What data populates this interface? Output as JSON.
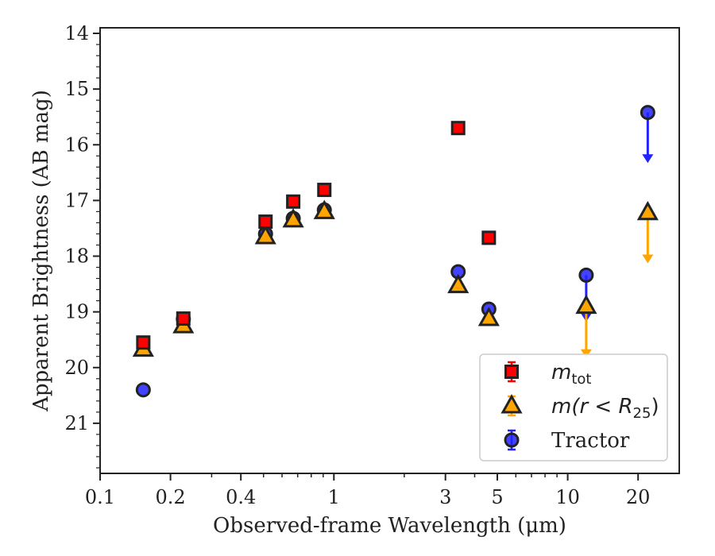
{
  "chart_data": {
    "type": "scatter",
    "xlabel": "Observed-frame Wavelength (μm)",
    "ylabel": "Apparent Brightness (AB mag)",
    "xscale": "log",
    "xlim": [
      0.1,
      30
    ],
    "ylim": [
      21.9,
      13.9
    ],
    "y_inverted": true,
    "xticks": [
      {
        "value": 0.1,
        "label": "0.1"
      },
      {
        "value": 0.2,
        "label": "0.2"
      },
      {
        "value": 0.4,
        "label": "0.4"
      },
      {
        "value": 1,
        "label": "1"
      },
      {
        "value": 3,
        "label": "3"
      },
      {
        "value": 5,
        "label": "5"
      },
      {
        "value": 10,
        "label": "10"
      },
      {
        "value": 20,
        "label": "20"
      }
    ],
    "yticks": [
      14,
      15,
      16,
      17,
      18,
      19,
      20,
      21
    ],
    "grid": false,
    "legend_position": "lower right",
    "series": [
      {
        "name": "m_tot",
        "legend_label": {
          "main": "m",
          "sub": "tot",
          "rest": ""
        },
        "marker": "square",
        "color": "#ff0000",
        "edge_color": "#222222",
        "points": [
          {
            "x": 0.153,
            "y": 19.55
          },
          {
            "x": 0.227,
            "y": 19.12
          },
          {
            "x": 0.51,
            "y": 17.38
          },
          {
            "x": 0.67,
            "y": 17.02
          },
          {
            "x": 0.91,
            "y": 16.81
          },
          {
            "x": 3.4,
            "y": 15.7
          },
          {
            "x": 4.6,
            "y": 17.67
          }
        ]
      },
      {
        "name": "m(r < R_25)",
        "legend_label": {
          "main": "m(r < R",
          "sub": "25",
          "rest": ")"
        },
        "marker": "triangle",
        "color": "#ffa500",
        "edge_color": "#222222",
        "points": [
          {
            "x": 0.153,
            "y": 19.67
          },
          {
            "x": 0.227,
            "y": 19.25
          },
          {
            "x": 0.51,
            "y": 17.65
          },
          {
            "x": 0.67,
            "y": 17.35
          },
          {
            "x": 0.91,
            "y": 17.2
          },
          {
            "x": 3.4,
            "y": 18.53
          },
          {
            "x": 4.6,
            "y": 19.12
          },
          {
            "x": 12,
            "y": 18.9,
            "upper_limit": true,
            "arrow_to": 19.8
          },
          {
            "x": 22,
            "y": 17.22,
            "upper_limit": true,
            "arrow_to": 18.1
          }
        ]
      },
      {
        "name": "Tractor",
        "legend_label": {
          "main": "Tractor",
          "sub": "",
          "rest": ""
        },
        "marker": "circle",
        "color": "#2222ff",
        "edge_color": "#222222",
        "points": [
          {
            "x": 0.153,
            "y": 20.4
          },
          {
            "x": 0.227,
            "y": 19.13
          },
          {
            "x": 0.51,
            "y": 17.6
          },
          {
            "x": 0.67,
            "y": 17.32
          },
          {
            "x": 0.91,
            "y": 17.17
          },
          {
            "x": 3.4,
            "y": 18.28
          },
          {
            "x": 4.6,
            "y": 18.95
          },
          {
            "x": 12,
            "y": 18.34,
            "upper_limit": true,
            "arrow_to": 19.15
          },
          {
            "x": 22,
            "y": 15.42,
            "upper_limit": true,
            "arrow_to": 16.3
          }
        ]
      }
    ]
  }
}
